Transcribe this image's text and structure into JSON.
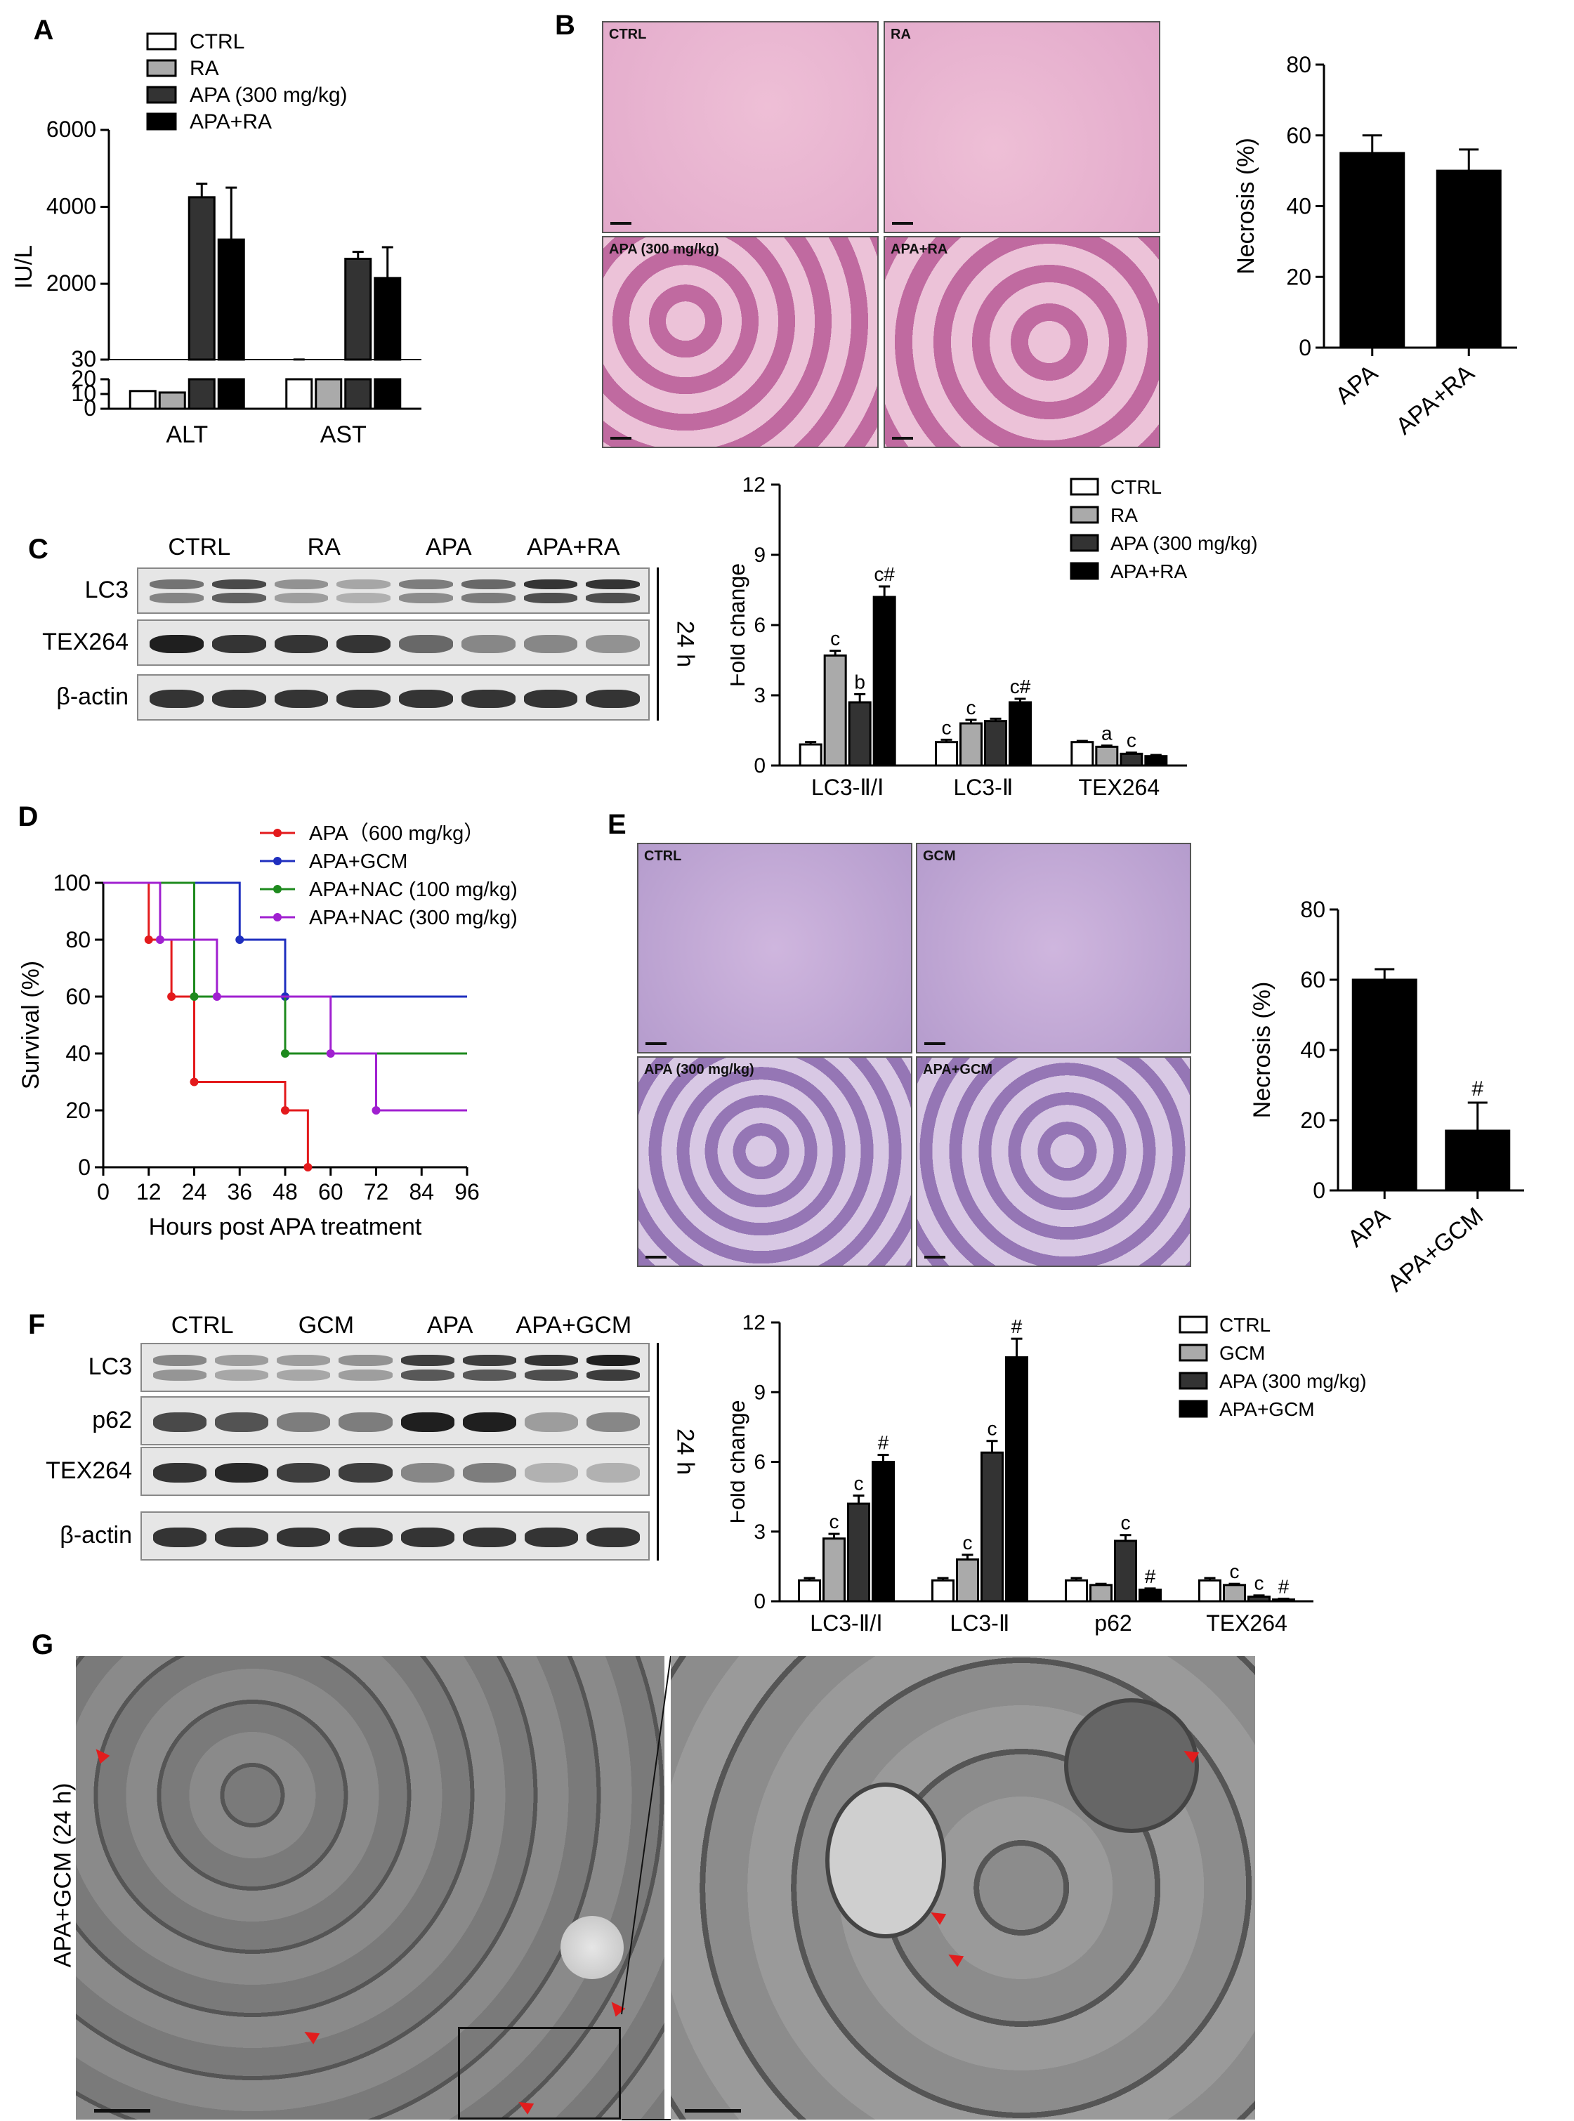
{
  "panel_labels": {
    "a": "A",
    "b": "B",
    "c": "C",
    "d": "D",
    "e": "E",
    "f": "F",
    "g": "G"
  },
  "chart_data": [
    {
      "id": "A",
      "type": "bar",
      "categories": [
        "ALT",
        "AST"
      ],
      "series": [
        {
          "name": "CTRL",
          "color": "#ffffff",
          "values": [
            12,
            30
          ]
        },
        {
          "name": "RA",
          "color": "#aaaaaa",
          "values": [
            11,
            29
          ]
        },
        {
          "name": "APA (300 mg/kg)",
          "color": "#333333",
          "values": [
            4250,
            2650
          ]
        },
        {
          "name": "APA+RA",
          "color": "#000000",
          "values": [
            3150,
            2150
          ]
        }
      ],
      "errors": [
        [
          3,
          2
        ],
        [
          2,
          2
        ],
        [
          350,
          180
        ],
        [
          1350,
          800
        ]
      ],
      "ylabel": "IU/L",
      "yticks_upper": [
        "6000",
        "4000",
        "2000",
        "30"
      ],
      "yticks_lower": [
        "20",
        "10",
        "0"
      ],
      "axis_break": true,
      "legend_position": "top-left"
    },
    {
      "id": "B",
      "type": "bar",
      "categories": [
        "APA",
        "APA+RA"
      ],
      "values": [
        55,
        50
      ],
      "errors": [
        5,
        6
      ],
      "ylabel": "Necrosis (%)",
      "ylim": [
        0,
        80
      ],
      "yticks": [
        "0",
        "20",
        "40",
        "60",
        "80"
      ]
    },
    {
      "id": "C",
      "type": "bar",
      "categories": [
        "LC3-Ⅱ/Ⅰ",
        "LC3-Ⅱ",
        "TEX264"
      ],
      "series": [
        {
          "name": "CTRL",
          "color": "#ffffff",
          "values": [
            0.9,
            1.0,
            1.0
          ]
        },
        {
          "name": "RA",
          "color": "#aaaaaa",
          "values": [
            4.7,
            1.8,
            0.8
          ]
        },
        {
          "name": "APA (300 mg/kg)",
          "color": "#333333",
          "values": [
            2.7,
            1.9,
            0.5
          ]
        },
        {
          "name": "APA+RA",
          "color": "#000000",
          "values": [
            7.2,
            2.7,
            0.4
          ]
        }
      ],
      "errors": [
        [
          0.1,
          0.1,
          0.05
        ],
        [
          0.2,
          0.15,
          0.05
        ],
        [
          0.35,
          0.1,
          0.05
        ],
        [
          0.45,
          0.15,
          0.05
        ]
      ],
      "sig": [
        [
          "",
          "",
          "",
          ""
        ],
        [
          "c",
          "b",
          "c#",
          ""
        ],
        [
          "c",
          "c",
          "c#",
          ""
        ]
      ],
      "sig_by_group": [
        [
          "",
          "c",
          "b",
          "c#"
        ],
        [
          "c",
          "c",
          "",
          "c#"
        ],
        [
          "",
          "a",
          "c",
          ""
        ]
      ],
      "ylabel": "Fold change",
      "ylim": [
        0,
        12
      ],
      "yticks": [
        "0",
        "3",
        "6",
        "9",
        "12"
      ],
      "legend_position": "top-right"
    },
    {
      "id": "D",
      "type": "line",
      "xlabel": "Hours post APA treatment",
      "ylabel": "Survival (%)",
      "xlim": [
        0,
        96
      ],
      "ylim": [
        0,
        100
      ],
      "xticks": [
        "0",
        "12",
        "24",
        "36",
        "48",
        "60",
        "72",
        "84",
        "96"
      ],
      "yticks": [
        "0",
        "20",
        "40",
        "60",
        "80",
        "100"
      ],
      "series": [
        {
          "name": "APA（600 mg/kg）",
          "color": "#e31a1c",
          "x": [
            0,
            12,
            12,
            18,
            18,
            24,
            24,
            48,
            48,
            54,
            54
          ],
          "y": [
            100,
            100,
            80,
            80,
            60,
            60,
            30,
            30,
            20,
            20,
            0
          ]
        },
        {
          "name": "APA+GCM",
          "color": "#1f2fbf",
          "x": [
            0,
            36,
            36,
            48,
            48,
            96
          ],
          "y": [
            100,
            100,
            80,
            80,
            60,
            60
          ]
        },
        {
          "name": "APA+NAC (100 mg/kg)",
          "color": "#1e8a1e",
          "x": [
            0,
            24,
            24,
            48,
            48,
            96
          ],
          "y": [
            100,
            100,
            60,
            60,
            40,
            40
          ]
        },
        {
          "name": "APA+NAC (300 mg/kg)",
          "color": "#a020d0",
          "x": [
            0,
            15,
            15,
            30,
            30,
            60,
            60,
            72,
            72,
            96
          ],
          "y": [
            100,
            100,
            80,
            80,
            60,
            60,
            40,
            40,
            20,
            20
          ]
        }
      ],
      "legend_position": "top-right"
    },
    {
      "id": "E",
      "type": "bar",
      "categories": [
        "APA",
        "APA+GCM"
      ],
      "values": [
        60,
        17
      ],
      "errors": [
        3,
        8
      ],
      "sig": [
        "",
        "#"
      ],
      "ylabel": "Necrosis (%)",
      "ylim": [
        0,
        80
      ],
      "yticks": [
        "0",
        "20",
        "40",
        "60",
        "80"
      ]
    },
    {
      "id": "F",
      "type": "bar",
      "categories": [
        "LC3-Ⅱ/Ⅰ",
        "LC3-Ⅱ",
        "p62",
        "TEX264"
      ],
      "series": [
        {
          "name": "CTRL",
          "color": "#ffffff",
          "values": [
            0.9,
            0.9,
            0.9,
            0.9
          ]
        },
        {
          "name": "GCM",
          "color": "#aaaaaa",
          "values": [
            2.7,
            1.8,
            0.7,
            0.7
          ]
        },
        {
          "name": "APA (300 mg/kg)",
          "color": "#333333",
          "values": [
            4.2,
            6.4,
            2.6,
            0.2
          ]
        },
        {
          "name": "APA+GCM",
          "color": "#000000",
          "values": [
            6.0,
            10.5,
            0.5,
            0.08
          ]
        }
      ],
      "errors": [
        [
          0.1,
          0.1,
          0.1,
          0.1
        ],
        [
          0.2,
          0.2,
          0.05,
          0.05
        ],
        [
          0.35,
          0.5,
          0.25,
          0.05
        ],
        [
          0.3,
          0.8,
          0.05,
          0.03
        ]
      ],
      "sig_by_group": [
        [
          "",
          "c",
          "c",
          "#"
        ],
        [
          "",
          "c",
          "c",
          "#"
        ],
        [
          "",
          "",
          "c",
          "#"
        ],
        [
          "",
          "c",
          "c",
          "#"
        ]
      ],
      "ylabel": "Fold change",
      "ylim": [
        0,
        12
      ],
      "yticks": [
        "0",
        "3",
        "6",
        "9",
        "12"
      ],
      "legend_position": "top-right"
    }
  ],
  "panelB": {
    "titles": [
      "CTRL",
      "RA",
      "APA (300 mg/kg)",
      "APA+RA"
    ]
  },
  "panelC": {
    "groups": [
      "CTRL",
      "RA",
      "APA",
      "APA+RA"
    ],
    "rows": [
      "LC3",
      "TEX264",
      "β-actin"
    ],
    "time": "24 h"
  },
  "panelE": {
    "titles": [
      "CTRL",
      "GCM",
      "APA (300 mg/kg)",
      "APA+GCM"
    ]
  },
  "panelF": {
    "groups": [
      "CTRL",
      "GCM",
      "APA",
      "APA+GCM"
    ],
    "rows": [
      "LC3",
      "p62",
      "TEX264",
      "β-actin"
    ],
    "time": "24 h"
  },
  "panelG": {
    "side_label": "APA+GCM (24 h)"
  },
  "colors": {
    "histo_light": "#e8b7d0",
    "histo_dark": "#c978aa",
    "histo2_light": "#c9b8dd",
    "histo2_dark": "#8a63a8",
    "em": "#6e6e6e",
    "arrow": "#e21d1d"
  }
}
